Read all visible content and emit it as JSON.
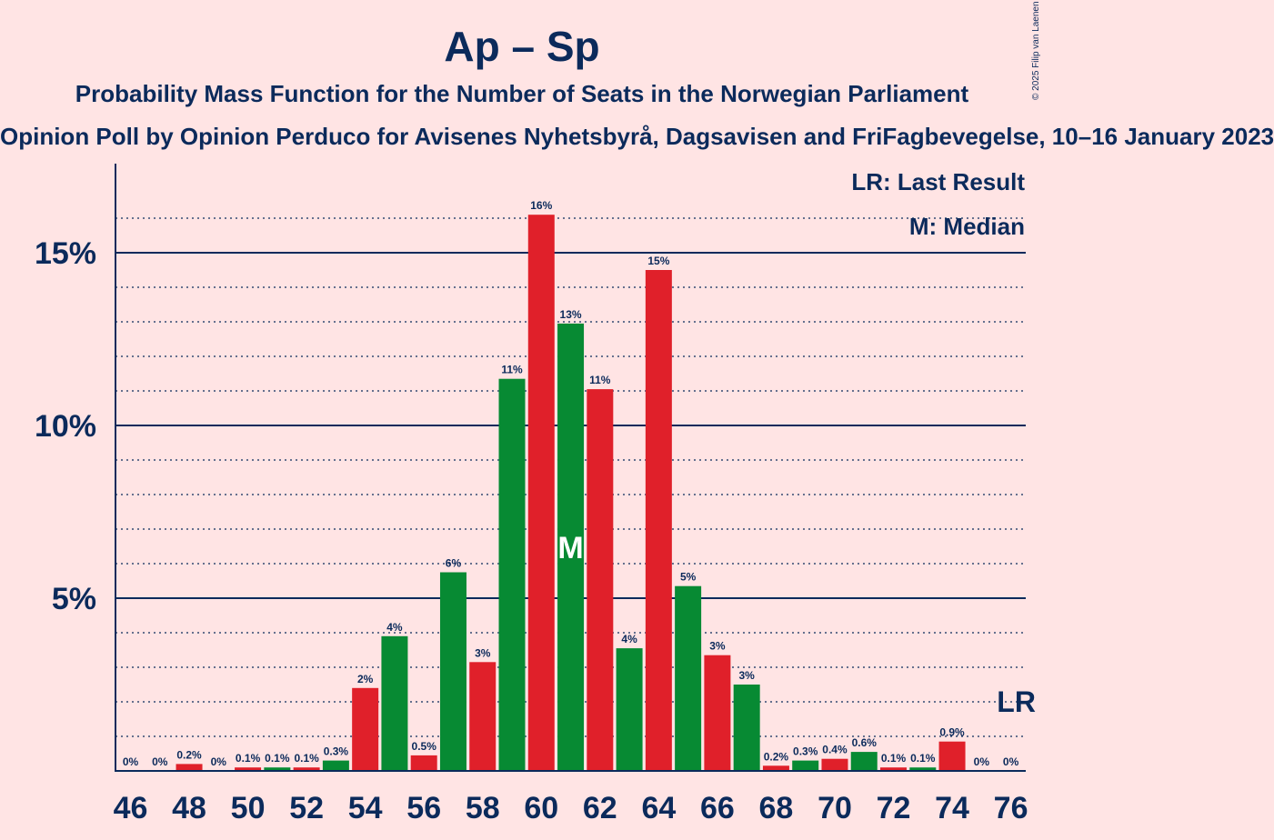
{
  "title": "Ap – Sp",
  "subtitle": "Probability Mass Function for the Number of Seats in the Norwegian Parliament",
  "source": "Opinion Poll by Opinion Perduco for Avisenes Nyhetsbyrå, Dagsavisen and FriFagbevegelse, 10–16 January 2023",
  "copyright": "© 2025 Filip van Laenen",
  "legend": {
    "last_result": "LR: Last Result",
    "median": "M: Median"
  },
  "markers": {
    "median_label": "M",
    "last_result_label": "LR",
    "median_seat": 61,
    "last_result_seat": 76
  },
  "colors": {
    "background": "#ffe4e4",
    "text": "#0b2a5b",
    "red": "#e0202a",
    "green": "#078a33",
    "grid": "#0b2a5b"
  },
  "chart_data": {
    "type": "bar",
    "xlabel": "",
    "ylabel": "",
    "ylim": [
      0,
      17
    ],
    "yticks": [
      5,
      10,
      15
    ],
    "ytick_labels": [
      "5%",
      "10%",
      "15%"
    ],
    "xtick_labels": [
      "46",
      "48",
      "50",
      "52",
      "54",
      "56",
      "58",
      "60",
      "62",
      "64",
      "66",
      "68",
      "70",
      "72",
      "74",
      "76"
    ],
    "minor_grid_step": 1,
    "categories": [
      46,
      47,
      48,
      49,
      50,
      51,
      52,
      53,
      54,
      55,
      56,
      57,
      58,
      59,
      60,
      61,
      62,
      63,
      64,
      65,
      66,
      67,
      68,
      69,
      70,
      71,
      72,
      73,
      74,
      75,
      76
    ],
    "values": [
      0,
      0,
      0.2,
      0,
      0.1,
      0.1,
      0.1,
      0.3,
      2.4,
      3.9,
      0.45,
      5.75,
      3.15,
      11.35,
      16.1,
      12.95,
      11.05,
      3.55,
      14.5,
      5.35,
      3.35,
      2.5,
      0.15,
      0.3,
      0.35,
      0.55,
      0.1,
      0.1,
      0.85,
      0,
      0
    ],
    "labels": [
      "0%",
      "0%",
      "0.2%",
      "0%",
      "0.1%",
      "0.1%",
      "0.1%",
      "0.3%",
      "2%",
      "4%",
      "0.5%",
      "6%",
      "3%",
      "11%",
      "16%",
      "13%",
      "11%",
      "4%",
      "15%",
      "5%",
      "3%",
      "3%",
      "0.2%",
      "0.3%",
      "0.4%",
      "0.6%",
      "0.1%",
      "0.1%",
      "0.9%",
      "0%",
      "0%"
    ]
  }
}
